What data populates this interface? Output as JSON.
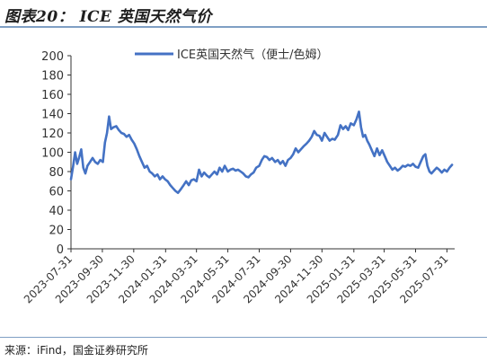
{
  "figure": {
    "title": "图表20： ICE 英国天然气价",
    "source": "来源：iFind，国金证券研究所"
  },
  "chart_data": {
    "type": "line",
    "title": "",
    "xlabel": "",
    "ylabel": "",
    "ylim": [
      0,
      200
    ],
    "yticks": [
      0,
      20,
      40,
      60,
      80,
      100,
      120,
      140,
      160,
      180,
      200
    ],
    "x_range": [
      "2023-07-31",
      "2025-08-15"
    ],
    "xticks": [
      "2023-07-31",
      "2023-09-30",
      "2023-11-30",
      "2024-01-31",
      "2024-03-31",
      "2024-05-31",
      "2024-07-31",
      "2024-09-30",
      "2024-11-30",
      "2025-01-31",
      "2025-03-31",
      "2025-05-31",
      "2025-07-31"
    ],
    "grid": false,
    "legend_position": "top",
    "color": "#4472c4",
    "series": [
      {
        "name": "ICE英国天然气（便士/色姆）",
        "points": [
          [
            "2023-07-31",
            72
          ],
          [
            "2023-08-04",
            85
          ],
          [
            "2023-08-08",
            100
          ],
          [
            "2023-08-12",
            88
          ],
          [
            "2023-08-16",
            95
          ],
          [
            "2023-08-20",
            103
          ],
          [
            "2023-08-24",
            84
          ],
          [
            "2023-08-28",
            78
          ],
          [
            "2023-09-01",
            86
          ],
          [
            "2023-09-06",
            90
          ],
          [
            "2023-09-11",
            94
          ],
          [
            "2023-09-16",
            90
          ],
          [
            "2023-09-21",
            88
          ],
          [
            "2023-09-26",
            92
          ],
          [
            "2023-10-01",
            90
          ],
          [
            "2023-10-05",
            110
          ],
          [
            "2023-10-09",
            120
          ],
          [
            "2023-10-13",
            137
          ],
          [
            "2023-10-17",
            124
          ],
          [
            "2023-10-22",
            126
          ],
          [
            "2023-10-27",
            127
          ],
          [
            "2023-11-01",
            123
          ],
          [
            "2023-11-06",
            120
          ],
          [
            "2023-11-11",
            119
          ],
          [
            "2023-11-16",
            116
          ],
          [
            "2023-11-21",
            118
          ],
          [
            "2023-11-26",
            113
          ],
          [
            "2023-12-01",
            109
          ],
          [
            "2023-12-06",
            103
          ],
          [
            "2023-12-11",
            96
          ],
          [
            "2023-12-16",
            90
          ],
          [
            "2023-12-21",
            84
          ],
          [
            "2023-12-26",
            86
          ],
          [
            "2023-12-31",
            80
          ],
          [
            "2024-01-05",
            78
          ],
          [
            "2024-01-10",
            75
          ],
          [
            "2024-01-15",
            77
          ],
          [
            "2024-01-20",
            72
          ],
          [
            "2024-01-25",
            75
          ],
          [
            "2024-01-30",
            72
          ],
          [
            "2024-02-04",
            70
          ],
          [
            "2024-02-09",
            66
          ],
          [
            "2024-02-14",
            63
          ],
          [
            "2024-02-19",
            60
          ],
          [
            "2024-02-24",
            58
          ],
          [
            "2024-03-01",
            62
          ],
          [
            "2024-03-06",
            66
          ],
          [
            "2024-03-11",
            70
          ],
          [
            "2024-03-16",
            66
          ],
          [
            "2024-03-21",
            71
          ],
          [
            "2024-03-26",
            72
          ],
          [
            "2024-03-31",
            70
          ],
          [
            "2024-04-05",
            82
          ],
          [
            "2024-04-10",
            75
          ],
          [
            "2024-04-15",
            79
          ],
          [
            "2024-04-20",
            76
          ],
          [
            "2024-04-25",
            74
          ],
          [
            "2024-04-30",
            77
          ],
          [
            "2024-05-05",
            80
          ],
          [
            "2024-05-10",
            77
          ],
          [
            "2024-05-15",
            84
          ],
          [
            "2024-05-20",
            80
          ],
          [
            "2024-05-25",
            86
          ],
          [
            "2024-05-31",
            80
          ],
          [
            "2024-06-05",
            82
          ],
          [
            "2024-06-10",
            83
          ],
          [
            "2024-06-15",
            81
          ],
          [
            "2024-06-20",
            82
          ],
          [
            "2024-06-25",
            80
          ],
          [
            "2024-06-30",
            78
          ],
          [
            "2024-07-05",
            75
          ],
          [
            "2024-07-10",
            74
          ],
          [
            "2024-07-15",
            77
          ],
          [
            "2024-07-20",
            79
          ],
          [
            "2024-07-25",
            84
          ],
          [
            "2024-07-31",
            86
          ],
          [
            "2024-08-05",
            92
          ],
          [
            "2024-08-10",
            96
          ],
          [
            "2024-08-15",
            95
          ],
          [
            "2024-08-20",
            92
          ],
          [
            "2024-08-25",
            94
          ],
          [
            "2024-08-31",
            90
          ],
          [
            "2024-09-05",
            92
          ],
          [
            "2024-09-10",
            88
          ],
          [
            "2024-09-15",
            91
          ],
          [
            "2024-09-20",
            86
          ],
          [
            "2024-09-25",
            92
          ],
          [
            "2024-09-30",
            94
          ],
          [
            "2024-10-05",
            98
          ],
          [
            "2024-10-10",
            104
          ],
          [
            "2024-10-15",
            100
          ],
          [
            "2024-10-20",
            103
          ],
          [
            "2024-10-25",
            106
          ],
          [
            "2024-10-31",
            109
          ],
          [
            "2024-11-05",
            112
          ],
          [
            "2024-11-10",
            116
          ],
          [
            "2024-11-15",
            122
          ],
          [
            "2024-11-20",
            118
          ],
          [
            "2024-11-25",
            117
          ],
          [
            "2024-11-30",
            112
          ],
          [
            "2024-12-05",
            120
          ],
          [
            "2024-12-10",
            116
          ],
          [
            "2024-12-15",
            112
          ],
          [
            "2024-12-20",
            114
          ],
          [
            "2024-12-25",
            113
          ],
          [
            "2024-12-31",
            118
          ],
          [
            "2025-01-05",
            128
          ],
          [
            "2025-01-10",
            124
          ],
          [
            "2025-01-15",
            127
          ],
          [
            "2025-01-20",
            123
          ],
          [
            "2025-01-25",
            130
          ],
          [
            "2025-01-31",
            128
          ],
          [
            "2025-02-05",
            134
          ],
          [
            "2025-02-10",
            142
          ],
          [
            "2025-02-14",
            126
          ],
          [
            "2025-02-18",
            116
          ],
          [
            "2025-02-22",
            118
          ],
          [
            "2025-02-26",
            112
          ],
          [
            "2025-03-02",
            108
          ],
          [
            "2025-03-07",
            102
          ],
          [
            "2025-03-12",
            96
          ],
          [
            "2025-03-17",
            104
          ],
          [
            "2025-03-22",
            97
          ],
          [
            "2025-03-27",
            102
          ],
          [
            "2025-04-01",
            96
          ],
          [
            "2025-04-06",
            90
          ],
          [
            "2025-04-11",
            86
          ],
          [
            "2025-04-16",
            82
          ],
          [
            "2025-04-21",
            84
          ],
          [
            "2025-04-26",
            81
          ],
          [
            "2025-05-01",
            83
          ],
          [
            "2025-05-06",
            86
          ],
          [
            "2025-05-11",
            85
          ],
          [
            "2025-05-16",
            87
          ],
          [
            "2025-05-21",
            86
          ],
          [
            "2025-05-26",
            88
          ],
          [
            "2025-05-31",
            85
          ],
          [
            "2025-06-05",
            84
          ],
          [
            "2025-06-10",
            90
          ],
          [
            "2025-06-15",
            96
          ],
          [
            "2025-06-19",
            98
          ],
          [
            "2025-06-23",
            86
          ],
          [
            "2025-06-27",
            80
          ],
          [
            "2025-07-01",
            78
          ],
          [
            "2025-07-06",
            81
          ],
          [
            "2025-07-11",
            84
          ],
          [
            "2025-07-16",
            82
          ],
          [
            "2025-07-21",
            79
          ],
          [
            "2025-07-26",
            82
          ],
          [
            "2025-07-31",
            80
          ],
          [
            "2025-08-05",
            84
          ],
          [
            "2025-08-10",
            87
          ]
        ]
      }
    ]
  }
}
